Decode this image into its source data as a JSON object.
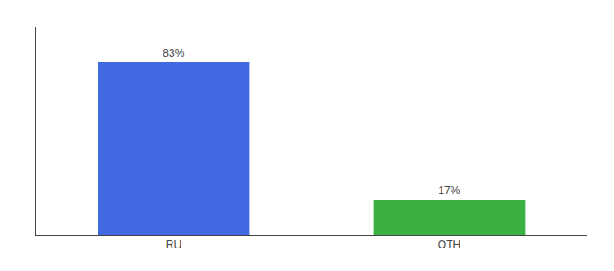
{
  "chart_data": {
    "type": "bar",
    "categories": [
      "RU",
      "OTH"
    ],
    "values": [
      83,
      17
    ],
    "value_labels": [
      "83%",
      "17%"
    ],
    "colors": [
      "#4169e1",
      "#3cb043"
    ],
    "ylim": [
      0,
      100
    ],
    "data_labels": true,
    "tick_labels": "x",
    "grid": false
  }
}
